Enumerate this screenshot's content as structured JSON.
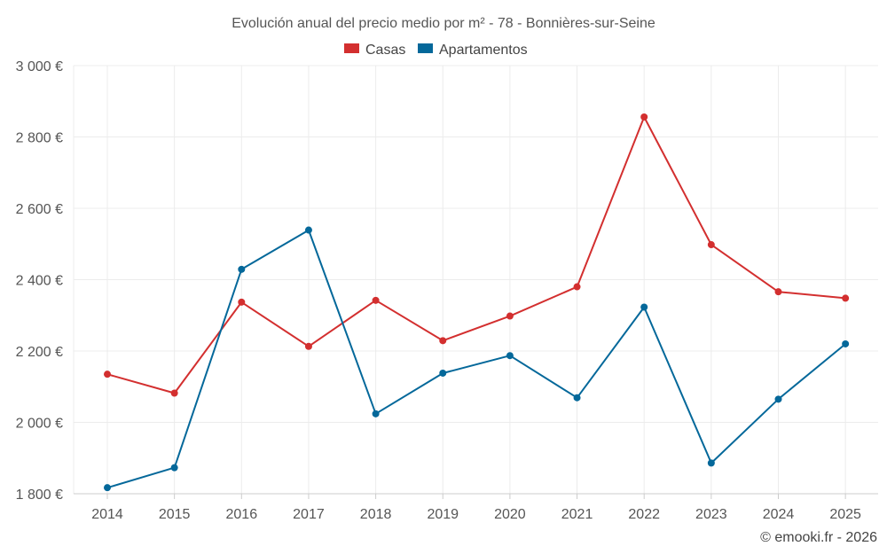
{
  "chart_data": {
    "type": "line",
    "title": "Evolución anual del precio medio por m² - 78 - Bonnières-sur-Seine",
    "categories": [
      "2014",
      "2015",
      "2016",
      "2017",
      "2018",
      "2019",
      "2020",
      "2021",
      "2022",
      "2023",
      "2024",
      "2025"
    ],
    "series": [
      {
        "name": "Casas",
        "color": "#d32f2f",
        "values": [
          2135,
          2082,
          2337,
          2213,
          2342,
          2229,
          2298,
          2380,
          2856,
          2498,
          2366,
          2348
        ]
      },
      {
        "name": "Apartamentos",
        "color": "#04689a",
        "values": [
          1817,
          1873,
          2429,
          2539,
          2024,
          2138,
          2187,
          2069,
          2323,
          1886,
          2065,
          2220
        ]
      }
    ],
    "yticks": [
      1800,
      2000,
      2200,
      2400,
      2600,
      2800,
      3000
    ],
    "ytick_labels": [
      "1 800 €",
      "2 000 €",
      "2 200 €",
      "2 400 €",
      "2 600 €",
      "2 800 €",
      "3 000 €"
    ],
    "ylim": [
      1800,
      3000
    ],
    "grid": true,
    "legend_position": "top-center",
    "credit": "© emooki.fr - 2026"
  }
}
